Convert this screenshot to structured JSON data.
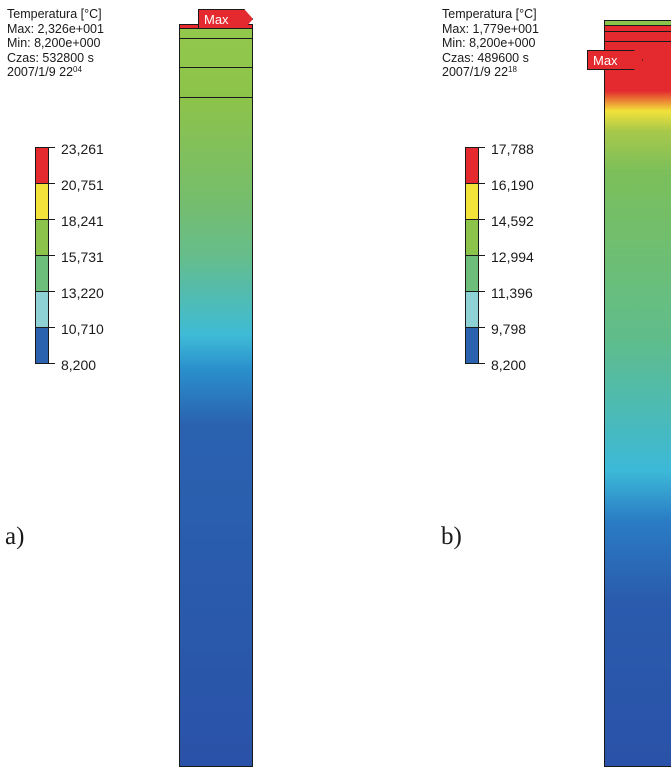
{
  "colors": {
    "band_red": "#e42a2f",
    "band_yellow": "#f2e23a",
    "band_green": "#8cc34a",
    "band_mid_green": "#6cbe7a",
    "band_cyan": "#8fd2d5",
    "band_blue": "#2a62b0",
    "outline": "#1a1a1a"
  },
  "panels": [
    {
      "id": "a",
      "label": "a)",
      "info": {
        "title": "Temperatura [°C]",
        "max": "Max: 2,326e+001",
        "min": "Min:  8,200e+000",
        "time": "Czas: 532800 s",
        "date": "2007/1/9 22",
        "date_sup": "04"
      },
      "legend_values": [
        "23,261",
        "20,751",
        "18,241",
        "15,731",
        "13,220",
        "10,710",
        "8,200"
      ],
      "max_marker": "Max"
    },
    {
      "id": "b",
      "label": "b)",
      "info": {
        "title": "Temperatura [°C]",
        "max": "Max: 1,779e+001",
        "min": "Min:  8,200e+000",
        "time": "Czas: 489600 s",
        "date": "2007/1/9 22",
        "date_sup": "18"
      },
      "legend_values": [
        "17,788",
        "16,190",
        "14,592",
        "12,994",
        "11,396",
        "9,798",
        "8,200"
      ],
      "max_marker": "Max"
    }
  ]
}
